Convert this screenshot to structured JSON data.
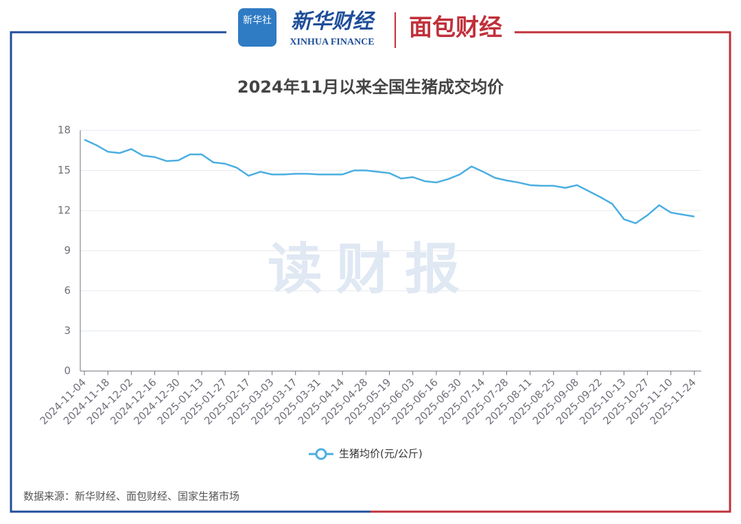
{
  "header": {
    "brand_cn": "新华财经",
    "brand_en": "XINHUA FINANCE",
    "badge": "新华社",
    "partner": "面包财经"
  },
  "watermark": "读财报",
  "chart_data": {
    "type": "line",
    "title": "2024年11月以来全国生猪成交均价",
    "categories": [
      "2024-11-04",
      null,
      "2024-11-18",
      null,
      "2024-12-02",
      null,
      "2024-12-16",
      null,
      "2024-12-30",
      null,
      "2025-01-13",
      null,
      "2025-01-27",
      null,
      "2025-02-17",
      null,
      "2025-03-03",
      null,
      "2025-03-17",
      null,
      "2025-03-31",
      null,
      "2025-04-14",
      null,
      "2025-04-28",
      null,
      "2025-05-19",
      null,
      "2025-06-03",
      null,
      "2025-06-16",
      null,
      "2025-06-30",
      null,
      "2025-07-14",
      null,
      "2025-07-28",
      null,
      "2025-08-11",
      null,
      "2025-08-25",
      null,
      "2025-09-08",
      null,
      "2025-09-22",
      null,
      "2025-10-13",
      null,
      "2025-10-27",
      null,
      "2025-11-10",
      null,
      "2025-11-24"
    ],
    "series": [
      {
        "name": "生猪均价(元/公斤)",
        "color": "#4aaee0",
        "values": [
          17.3,
          16.9,
          16.4,
          16.3,
          16.6,
          16.1,
          16.0,
          15.7,
          15.75,
          16.2,
          16.2,
          15.6,
          15.5,
          15.2,
          14.6,
          14.9,
          14.7,
          14.7,
          14.75,
          14.75,
          14.7,
          14.7,
          14.7,
          15.0,
          15.0,
          14.9,
          14.8,
          14.4,
          14.5,
          14.2,
          14.1,
          14.35,
          14.7,
          15.3,
          14.9,
          14.45,
          14.25,
          14.1,
          13.9,
          13.85,
          13.85,
          13.7,
          13.9,
          13.45,
          13.0,
          12.5,
          11.35,
          11.05,
          11.65,
          12.4,
          11.85,
          11.7,
          11.55
        ]
      }
    ],
    "ylim": [
      0,
      18
    ],
    "yticks": [
      0,
      3,
      6,
      9,
      12,
      15,
      18
    ],
    "grid": true,
    "legend": "bottom"
  },
  "source": "数据来源：新华财经、面包财经、国家生猪市场"
}
